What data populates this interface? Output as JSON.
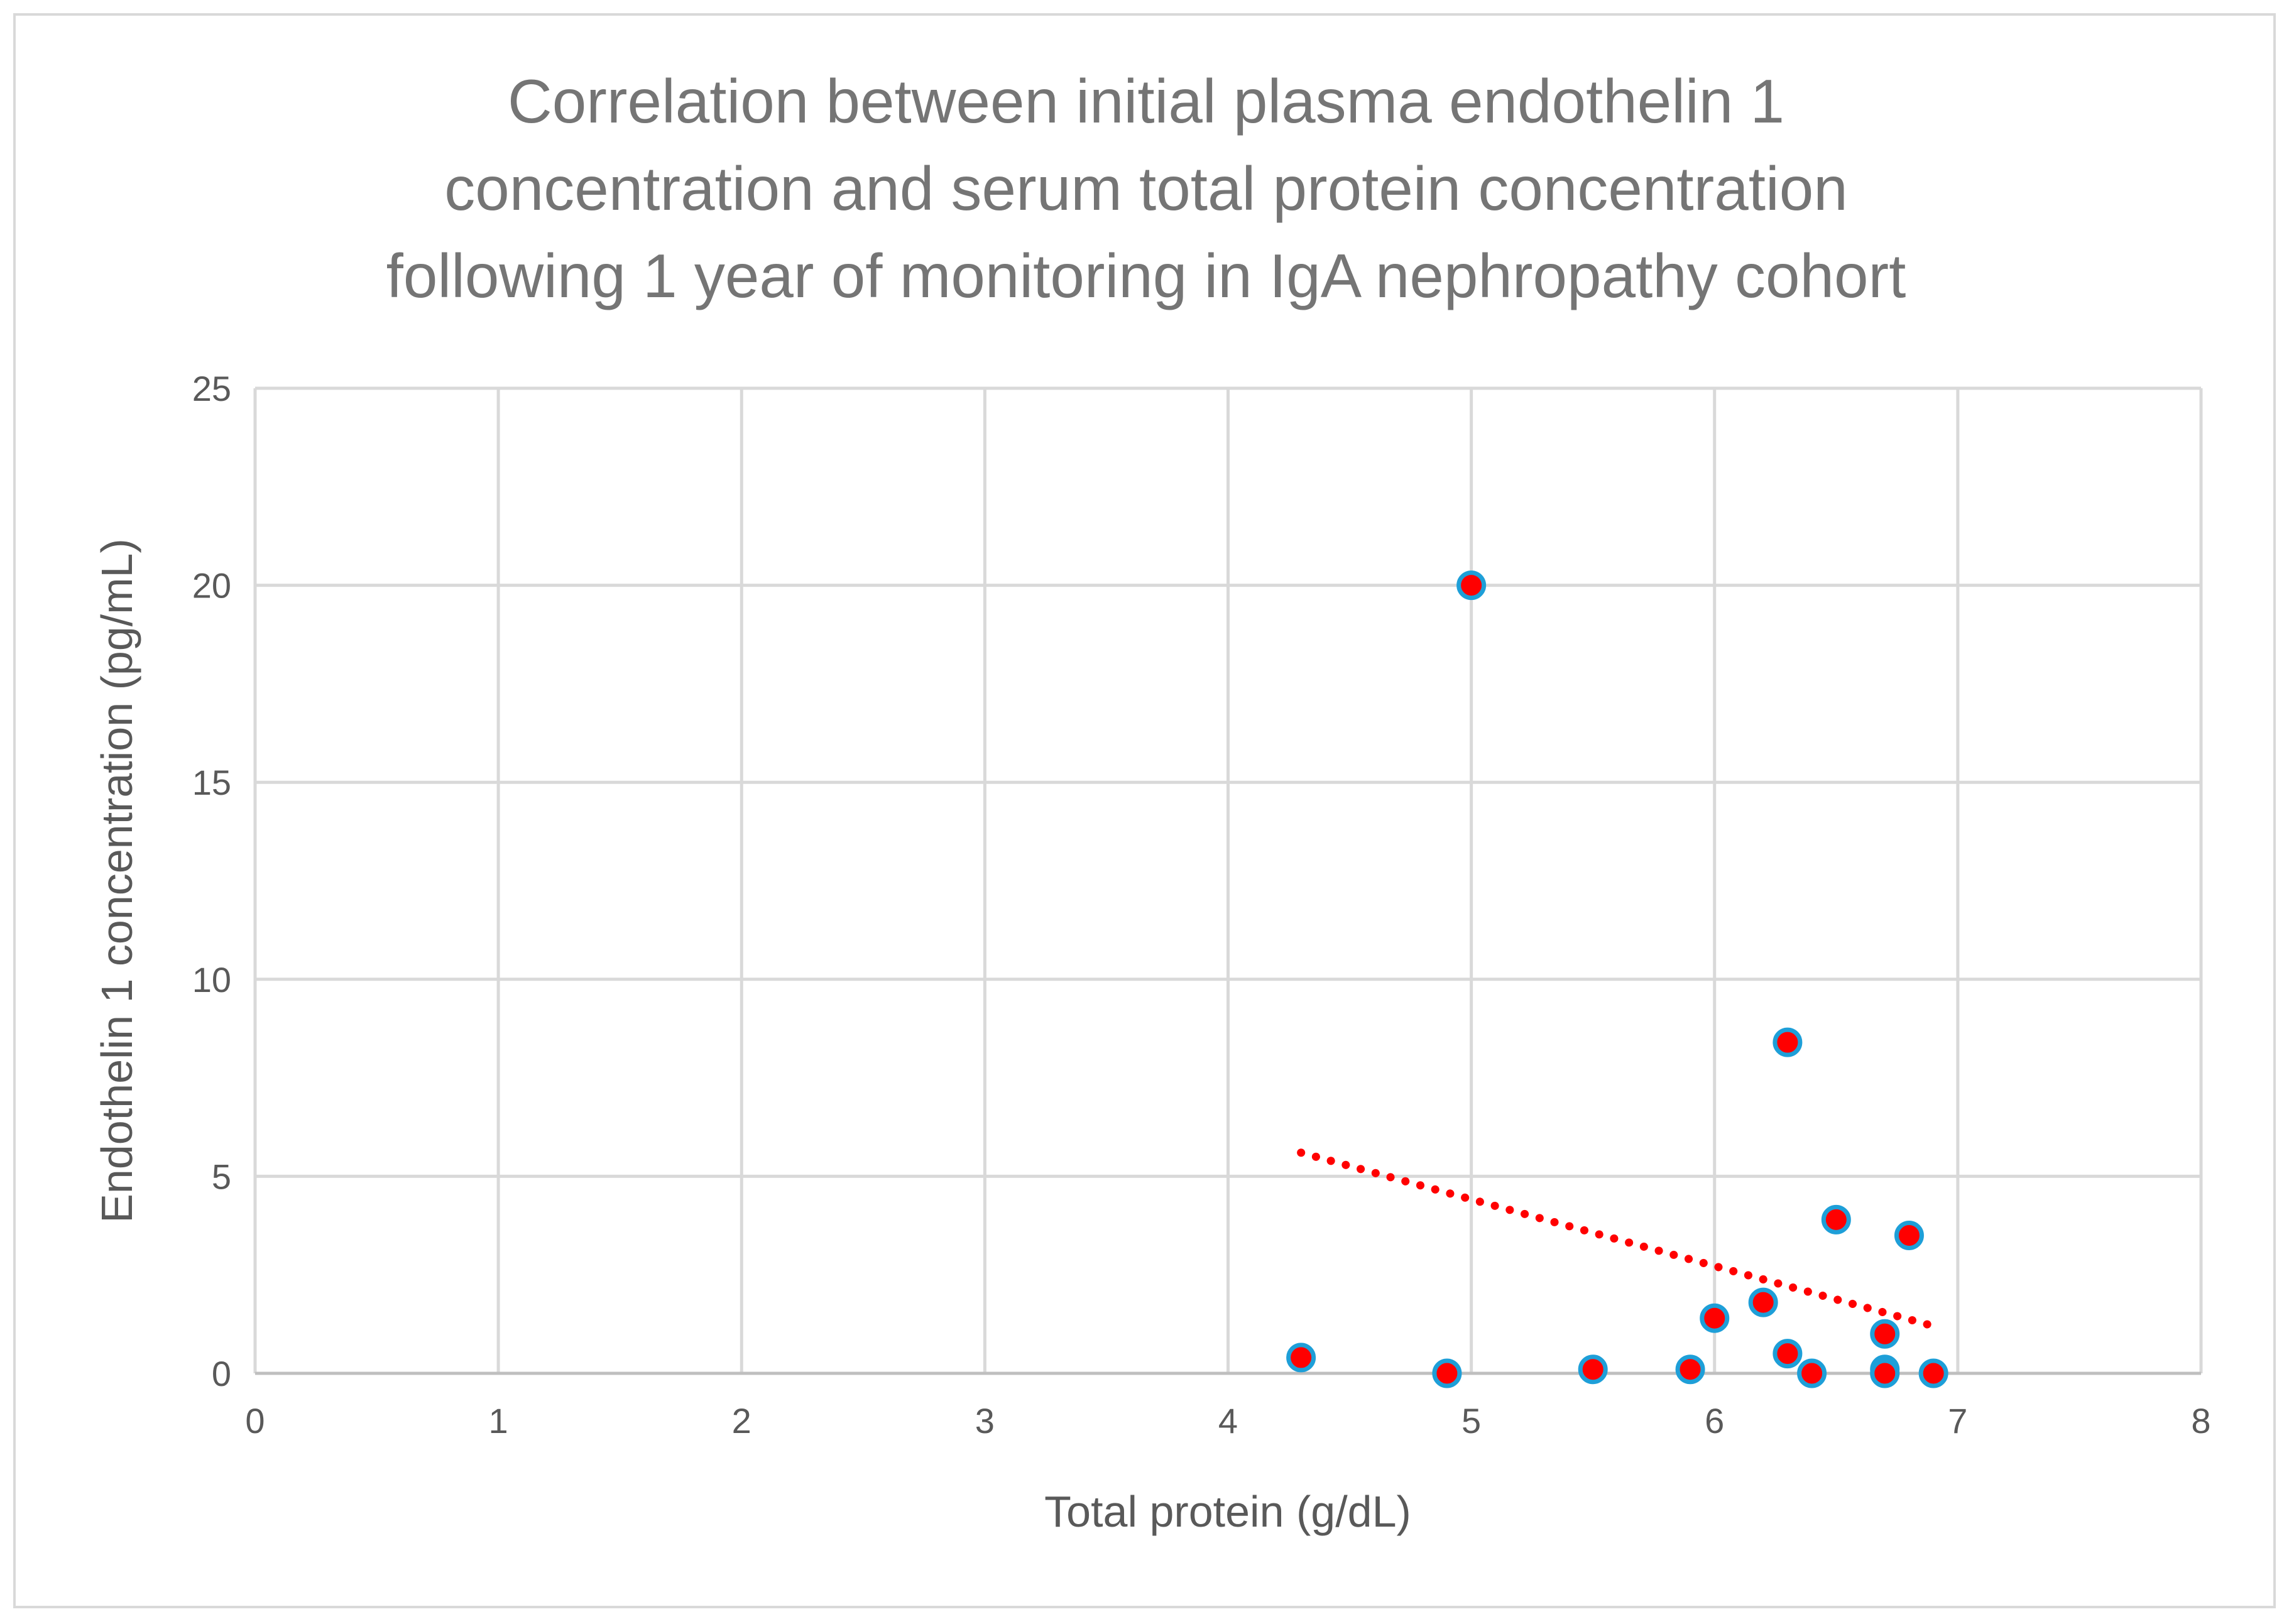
{
  "chart_data": {
    "type": "scatter",
    "title_lines": [
      "Correlation between initial plasma endothelin 1",
      "concentration and serum total protein concentration",
      "following 1 year of monitoring in IgA nephropathy cohort"
    ],
    "xlabel": "Total protein (g/dL)",
    "ylabel": "Endothelin 1 concentration (pg/mL)",
    "xlim": [
      0,
      8
    ],
    "ylim": [
      0,
      25
    ],
    "xticks": [
      "0",
      "1",
      "2",
      "3",
      "4",
      "5",
      "6",
      "7",
      "8"
    ],
    "yticks": [
      "0",
      "5",
      "10",
      "15",
      "20",
      "25"
    ],
    "grid": true,
    "points": [
      {
        "x": 4.3,
        "y": 0.4
      },
      {
        "x": 4.9,
        "y": 0
      },
      {
        "x": 5.0,
        "y": 20
      },
      {
        "x": 5.5,
        "y": 0.1
      },
      {
        "x": 5.9,
        "y": 0.1
      },
      {
        "x": 6.0,
        "y": 1.4
      },
      {
        "x": 6.2,
        "y": 1.8
      },
      {
        "x": 6.3,
        "y": 8.4
      },
      {
        "x": 6.3,
        "y": 0.5
      },
      {
        "x": 6.4,
        "y": 0
      },
      {
        "x": 6.5,
        "y": 3.9
      },
      {
        "x": 6.7,
        "y": 1.0
      },
      {
        "x": 6.7,
        "y": 0.1
      },
      {
        "x": 6.7,
        "y": 0
      },
      {
        "x": 6.8,
        "y": 3.5
      },
      {
        "x": 6.9,
        "y": 0
      }
    ],
    "trendline": {
      "type": "linear",
      "from": {
        "x": 4.3,
        "y": 5.6
      },
      "to": {
        "x": 6.9,
        "y": 1.2
      },
      "style": "dotted"
    },
    "colors": {
      "marker_fill": "#ff0000",
      "marker_edge": "#1e9fd8",
      "trendline": "#ff0000",
      "grid": "#d9d9d9",
      "axis": "#bfbfbf"
    }
  }
}
